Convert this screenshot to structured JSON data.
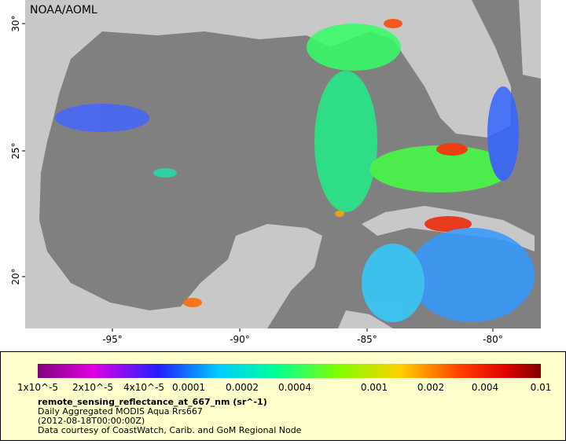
{
  "map": {
    "credit": "NOAA/AOML",
    "lat_labels": [
      "30°",
      "25°",
      "20°"
    ],
    "lon_labels": [
      "-95°",
      "-90°",
      "-85°",
      "-80°"
    ]
  },
  "colorbar": {
    "ticks": [
      "1x10^-5",
      "2x10^-5",
      "4x10^-5",
      "0.0001",
      "0.0002",
      "0.0004",
      "0.001",
      "0.002",
      "0.004",
      "0.01"
    ]
  },
  "legend": {
    "variable": "remote_sensing_reflectance_at_667_nm (sr^-1)",
    "lines": [
      "Daily Aggregated MODIS Aqua Rrs667",
      "(2012-08-18T00:00:00Z)",
      "Data courtesy of CoastWatch, Carib. and GoM Regional Node"
    ]
  }
}
